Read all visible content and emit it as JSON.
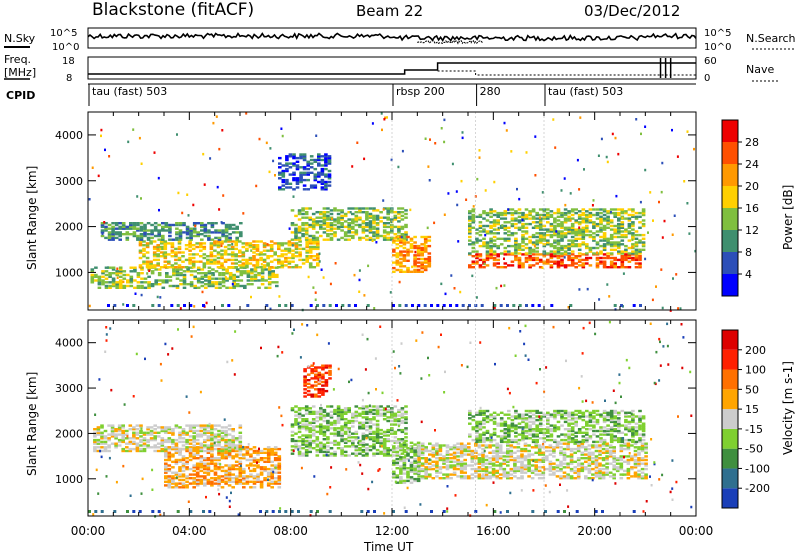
{
  "header": {
    "title": "Blackstone (fitACF)",
    "beam": "Beam 22",
    "date": "03/Dec/2012"
  },
  "param_panels": {
    "nsky_label": "N.Sky",
    "nsearch_label": "N.Search",
    "noise_ticks": [
      "10^5",
      "10^0"
    ],
    "freq_label_1": "Freq.",
    "freq_label_2": "[MHz]",
    "freq_ticks": [
      "18",
      "8"
    ],
    "nave_label": "Nave",
    "nave_ticks": [
      "60",
      "0"
    ],
    "cpid_label": "CPID",
    "cpid_segments": [
      {
        "label": "tau (fast) 503",
        "start_hr": 0.0
      },
      {
        "label": "rbsp 200",
        "start_hr": 12.0
      },
      {
        "label": "280",
        "start_hr": 15.3
      },
      {
        "label": "tau (fast) 503",
        "start_hr": 18.0
      }
    ]
  },
  "power_panel": {
    "ylabel": "Slant Range [km]",
    "yticks": [
      "4000",
      "3000",
      "2000",
      "1000"
    ],
    "colorbar_label": "Power [dB]",
    "colorbar_ticks": [
      "28",
      "24",
      "20",
      "16",
      "12",
      "8",
      "4"
    ],
    "colors": [
      "#0000ff",
      "#2c4fb8",
      "#3f8f6f",
      "#7fbf3f",
      "#ffd000",
      "#ff9900",
      "#ff5000",
      "#ee0000"
    ]
  },
  "velocity_panel": {
    "ylabel": "Slant Range [km]",
    "yticks": [
      "4000",
      "3000",
      "2000",
      "1000"
    ],
    "colorbar_label": "Velocity [m s-1]",
    "colorbar_ticks": [
      "200",
      "100",
      "50",
      "15",
      "-15",
      "-50",
      "-100",
      "-200"
    ],
    "colors": [
      "#1a3fb8",
      "#2f6f8f",
      "#3f8f3f",
      "#7fd030",
      "#cccccc",
      "#ffa500",
      "#ff7000",
      "#ff2000",
      "#dd0000"
    ]
  },
  "xaxis": {
    "label": "Time UT",
    "ticks": [
      "00:00",
      "04:00",
      "08:00",
      "12:00",
      "16:00",
      "20:00",
      "00:00"
    ]
  },
  "chart_data": {
    "type": "heatmap",
    "x_range_hours": [
      0,
      24
    ],
    "y_range_km": [
      180,
      4500
    ],
    "power_regions": [
      {
        "t0": 0.1,
        "t1": 7.5,
        "r0": 650,
        "r1": 1100,
        "level": 3
      },
      {
        "t0": 2.0,
        "t1": 9.0,
        "r0": 1100,
        "r1": 1700,
        "level": 4
      },
      {
        "t0": 0.5,
        "t1": 6.0,
        "r0": 1700,
        "r1": 2100,
        "level": 2
      },
      {
        "t0": 8.0,
        "t1": 12.5,
        "r0": 1700,
        "r1": 2400,
        "level": 3
      },
      {
        "t0": 12.0,
        "t1": 13.5,
        "r0": 1000,
        "r1": 1800,
        "level": 5
      },
      {
        "t0": 15.0,
        "t1": 21.8,
        "r0": 1100,
        "r1": 1400,
        "level": 6
      },
      {
        "t0": 15.0,
        "t1": 22.0,
        "r0": 1400,
        "r1": 2400,
        "level": 3
      },
      {
        "t0": 7.5,
        "t1": 9.5,
        "r0": 2800,
        "r1": 3600,
        "level": 1
      }
    ],
    "velocity_regions": [
      {
        "t0": 3.0,
        "t1": 7.5,
        "r0": 800,
        "r1": 1700,
        "level": 5
      },
      {
        "t0": 0.2,
        "t1": 6.0,
        "r0": 1600,
        "r1": 2200,
        "level": 4
      },
      {
        "t0": 8.0,
        "t1": 12.5,
        "r0": 1500,
        "r1": 2600,
        "level": 3
      },
      {
        "t0": 12.0,
        "t1": 13.0,
        "r0": 900,
        "r1": 1800,
        "level": 3
      },
      {
        "t0": 13.0,
        "t1": 22.0,
        "r0": 1000,
        "r1": 1800,
        "level": 4
      },
      {
        "t0": 15.0,
        "t1": 22.0,
        "r0": 1800,
        "r1": 2500,
        "level": 3
      },
      {
        "t0": 8.5,
        "t1": 9.5,
        "r0": 2800,
        "r1": 3500,
        "level": 7
      }
    ]
  }
}
